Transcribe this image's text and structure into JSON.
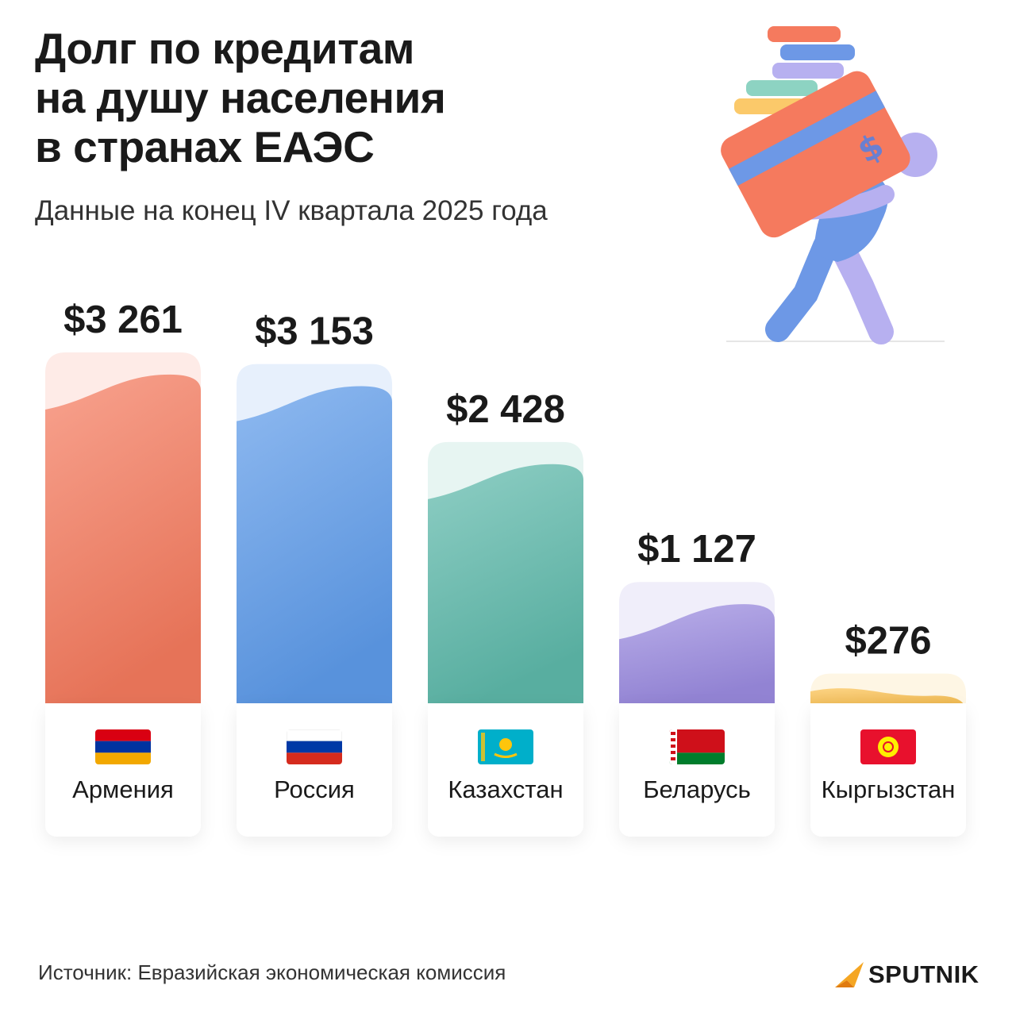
{
  "header": {
    "title_lines": [
      "Долг по кредитам",
      "на душу населения",
      "в странах ЕАЭС"
    ],
    "subtitle": "Данные на конец IV квартала 2025 года"
  },
  "footer": {
    "source": "Источник: Евразийская экономическая комиссия",
    "logo_text": "SPUTNIK"
  },
  "chart_data": {
    "type": "bar",
    "title": "Долг по кредитам на душу населения в странах ЕАЭС",
    "subtitle": "Данные на конец IV квартала 2025 года",
    "unit": "$",
    "categories": [
      "Армения",
      "Россия",
      "Казахстан",
      "Беларусь",
      "Кыргызстан"
    ],
    "values": [
      3261,
      3153,
      2428,
      1127,
      276
    ],
    "value_labels": [
      "$3 261",
      "$3 153",
      "$2 428",
      "$1 127",
      "$276"
    ],
    "colors": [
      "#f57a5e",
      "#5e9bea",
      "#5eb9aa",
      "#9b8be0",
      "#fbc04e"
    ],
    "flags": [
      "armenia-flag",
      "russia-flag",
      "kazakhstan-flag",
      "belarus-flag",
      "kyrgyzstan-flag"
    ],
    "ylim": [
      0,
      3261
    ],
    "grid": false,
    "legend": "none"
  }
}
